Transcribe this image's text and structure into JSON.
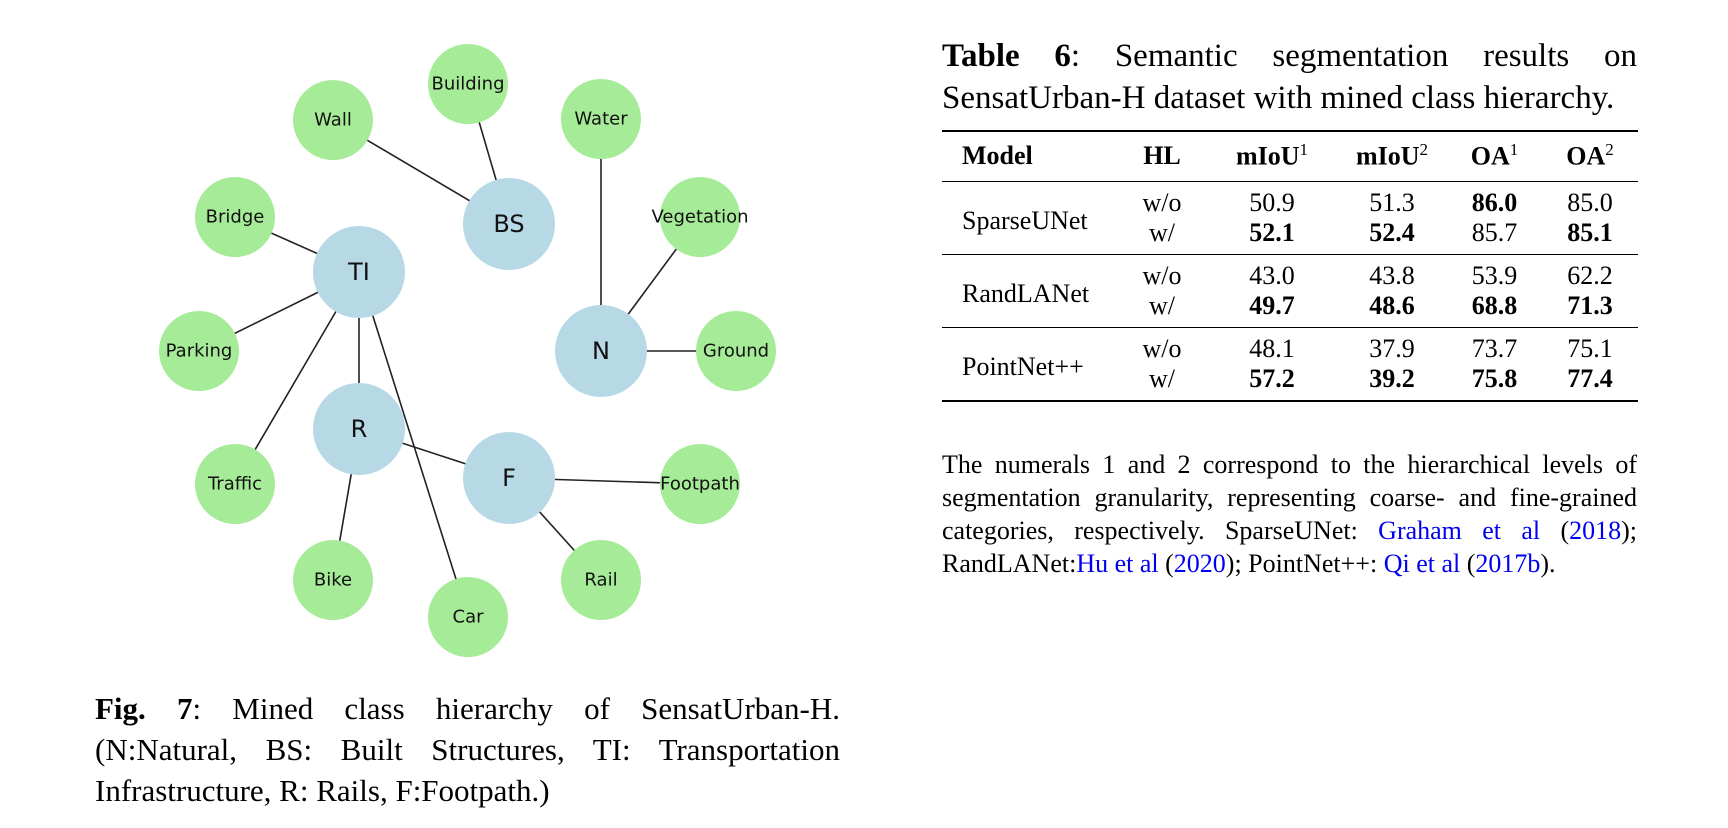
{
  "colors": {
    "parent_node": "#b7d9e6",
    "leaf_node": "#a6eb97",
    "edge": "#222222",
    "link": "#0000ee"
  },
  "graph": {
    "nodes": [
      {
        "id": "BS",
        "label": "BS",
        "kind": "parent"
      },
      {
        "id": "TI",
        "label": "TI",
        "kind": "parent"
      },
      {
        "id": "N",
        "label": "N",
        "kind": "parent"
      },
      {
        "id": "R",
        "label": "R",
        "kind": "parent"
      },
      {
        "id": "F",
        "label": "F",
        "kind": "parent"
      },
      {
        "id": "Building",
        "label": "Building",
        "kind": "leaf"
      },
      {
        "id": "Wall",
        "label": "Wall",
        "kind": "leaf"
      },
      {
        "id": "Water",
        "label": "Water",
        "kind": "leaf"
      },
      {
        "id": "Bridge",
        "label": "Bridge",
        "kind": "leaf"
      },
      {
        "id": "Vegetation",
        "label": "Vegetation",
        "kind": "leaf"
      },
      {
        "id": "Parking",
        "label": "Parking",
        "kind": "leaf"
      },
      {
        "id": "Ground",
        "label": "Ground",
        "kind": "leaf"
      },
      {
        "id": "Traffic",
        "label": "Traffic",
        "kind": "leaf"
      },
      {
        "id": "Footpath",
        "label": "Footpath",
        "kind": "leaf"
      },
      {
        "id": "Bike",
        "label": "Bike",
        "kind": "leaf"
      },
      {
        "id": "Rail",
        "label": "Rail",
        "kind": "leaf"
      },
      {
        "id": "Car",
        "label": "Car",
        "kind": "leaf"
      }
    ],
    "edges": [
      [
        "BS",
        "Building"
      ],
      [
        "BS",
        "Wall"
      ],
      [
        "N",
        "Water"
      ],
      [
        "N",
        "Vegetation"
      ],
      [
        "N",
        "Ground"
      ],
      [
        "TI",
        "Bridge"
      ],
      [
        "TI",
        "Parking"
      ],
      [
        "TI",
        "Traffic"
      ],
      [
        "TI",
        "R"
      ],
      [
        "TI",
        "Car"
      ],
      [
        "R",
        "Bike"
      ],
      [
        "R",
        "F"
      ],
      [
        "F",
        "Footpath"
      ],
      [
        "F",
        "Rail"
      ]
    ]
  },
  "figure_caption": {
    "label": "Fig. 7",
    "text": ": Mined class hierarchy of SensatUrban-H. (N:Natural, BS: Built Structures, TI: Transportation Infrastructure, R: Rails, F:Footpath.)"
  },
  "table_caption": {
    "label": "Table 6",
    "text": ": Semantic segmentation results on SensatUrban-H dataset with mined class hierarchy."
  },
  "table": {
    "headers": {
      "model": "Model",
      "hl": "HL",
      "miou1": "mIoU",
      "miou1_sup": "1",
      "miou2": "mIoU",
      "miou2_sup": "2",
      "oa1": "OA",
      "oa1_sup": "1",
      "oa2": "OA",
      "oa2_sup": "2"
    },
    "groups": [
      {
        "model": "SparseUNet",
        "rows": [
          {
            "hl": "w/o",
            "miou1": "50.9",
            "miou2": "51.3",
            "oa1": "86.0",
            "oa2": "85.0"
          },
          {
            "hl": "w/",
            "miou1": "52.1",
            "miou2": "52.4",
            "oa1": "85.7",
            "oa2": "85.1"
          }
        ]
      },
      {
        "model": "RandLANet",
        "rows": [
          {
            "hl": "w/o",
            "miou1": "43.0",
            "miou2": "43.8",
            "oa1": "53.9",
            "oa2": "62.2"
          },
          {
            "hl": "w/",
            "miou1": "49.7",
            "miou2": "48.6",
            "oa1": "68.8",
            "oa2": "71.3"
          }
        ]
      },
      {
        "model": "PointNet++",
        "rows": [
          {
            "hl": "w/o",
            "miou1": "48.1",
            "miou2": "37.9",
            "oa1": "73.7",
            "oa2": "75.1"
          },
          {
            "hl": "w/",
            "miou1": "57.2",
            "miou2": "39.2",
            "oa1": "75.8",
            "oa2": "77.4"
          }
        ]
      }
    ]
  },
  "table_note": {
    "text1": "The numerals 1 and 2 correspond to the hierarchical levels of segmentation granularity, representing coarse- and fine-grained categories, respectively. SparseUNet: ",
    "cite1_author": "Graham et al",
    "cite1_year": "2018",
    "text2": "); RandLANet:",
    "cite2_author": "Hu et al",
    "cite2_year": "2020",
    "text3": "); PointNet++: ",
    "cite3_author": "Qi et al",
    "cite3_year": "2017b",
    "text4": ")."
  }
}
